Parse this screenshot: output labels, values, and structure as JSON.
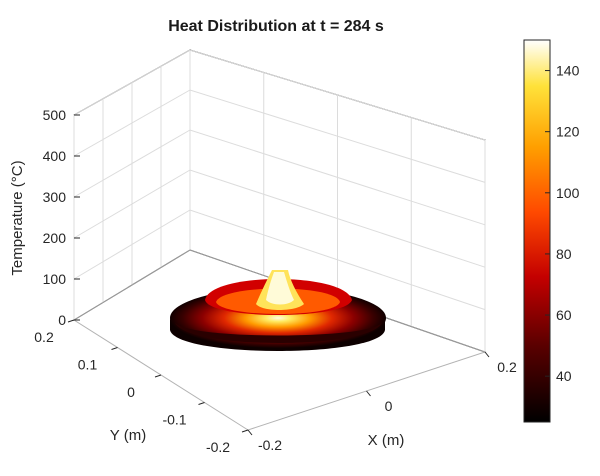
{
  "chart_data": {
    "type": "surface3d",
    "title": "Heat Distribution at t = 284 s",
    "xlabel": "X (m)",
    "ylabel": "Y (m)",
    "zlabel": "Temperature (°C)",
    "xlim": [
      -0.2,
      0.2
    ],
    "ylim": [
      -0.2,
      0.2
    ],
    "zlim": [
      0,
      500
    ],
    "x_ticks": [
      -0.2,
      0,
      0.2
    ],
    "y_ticks": [
      -0.2,
      -0.1,
      0,
      0.1,
      0.2
    ],
    "z_ticks": [
      0,
      100,
      200,
      300,
      400,
      500
    ],
    "x_tick_labels": [
      "-0.2",
      "0",
      "0.2"
    ],
    "y_tick_labels": [
      "-0.2",
      "-0.1",
      "0",
      "0.1",
      "0.2"
    ],
    "z_tick_labels": [
      "0",
      "100",
      "200",
      "300",
      "400",
      "500"
    ],
    "surface": {
      "shape": "radially symmetric disk with center peak",
      "outer_radius_m": 0.15,
      "center_peak_temperature": 150,
      "edge_temperature": 25,
      "profile": [
        {
          "r": 0.0,
          "temp": 150
        },
        {
          "r": 0.02,
          "temp": 110
        },
        {
          "r": 0.04,
          "temp": 70
        },
        {
          "r": 0.06,
          "temp": 55
        },
        {
          "r": 0.075,
          "temp": 50
        },
        {
          "r": 0.09,
          "temp": 45
        },
        {
          "r": 0.11,
          "temp": 35
        },
        {
          "r": 0.13,
          "temp": 28
        },
        {
          "r": 0.15,
          "temp": 25
        }
      ]
    },
    "colormap": "hot",
    "colorbar": {
      "min": 25,
      "max": 150,
      "ticks": [
        40,
        60,
        80,
        100,
        120,
        140
      ],
      "tick_labels": [
        "40",
        "60",
        "80",
        "100",
        "120",
        "140"
      ]
    },
    "grid": true
  }
}
